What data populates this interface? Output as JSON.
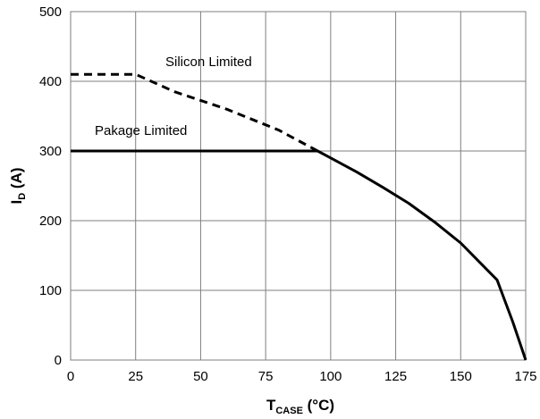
{
  "chart_data": {
    "type": "line",
    "xlabel": {
      "main": "T",
      "sub": "CASE",
      "suffix": " (°C)"
    },
    "ylabel": {
      "main": "I",
      "sub": "D",
      "suffix": " (A)"
    },
    "xlim": [
      0,
      175
    ],
    "ylim": [
      0,
      500
    ],
    "xticks": [
      0,
      25,
      50,
      75,
      100,
      125,
      150,
      175
    ],
    "yticks": [
      0,
      100,
      200,
      300,
      400,
      500
    ],
    "grid": true,
    "annotations": [
      "Silicon Limited",
      "Pakage Limited"
    ],
    "series": [
      {
        "style": "dashed",
        "x": [
          0,
          25,
          40,
          60,
          80,
          95
        ],
        "y": [
          410,
          410,
          385,
          360,
          330,
          300
        ]
      },
      {
        "style": "solid",
        "x": [
          0,
          92,
          95,
          100,
          110,
          120,
          130,
          140,
          150,
          160,
          164,
          166,
          170,
          175
        ],
        "y": [
          300,
          300,
          300,
          290,
          270,
          248,
          225,
          198,
          168,
          130,
          115,
          95,
          55,
          0
        ]
      }
    ]
  }
}
